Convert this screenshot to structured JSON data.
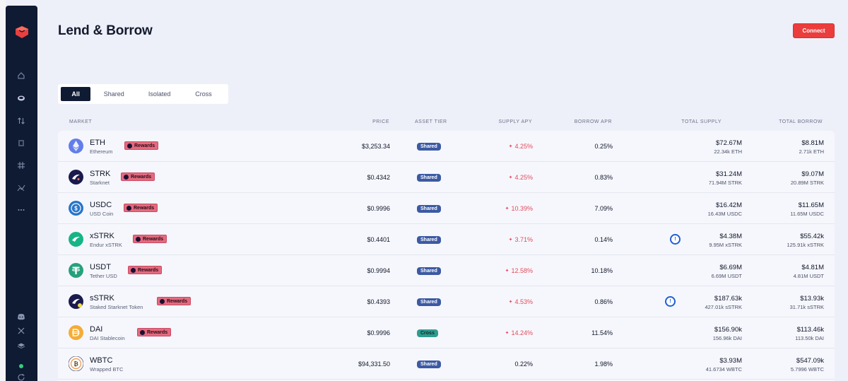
{
  "page": {
    "title": "Lend & Borrow"
  },
  "header": {
    "connect_label": "Connect"
  },
  "sidebar": {
    "icons": [
      "logo-icon",
      "home-icon",
      "lend-icon",
      "swap-icon",
      "bank-icon",
      "grid-icon",
      "chart-icon",
      "more-icon",
      "discord-icon",
      "x-icon",
      "docs-icon",
      "refresh-icon"
    ]
  },
  "tabs": [
    "All",
    "Shared",
    "Isolated",
    "Cross"
  ],
  "columns": {
    "market": "MARKET",
    "price": "PRICE",
    "asset_tier": "ASSET TIER",
    "supply_apy": "SUPPLY APY",
    "borrow_apr": "BORROW APR",
    "total_supply": "TOTAL SUPPLY",
    "total_borrow": "TOTAL BORROW"
  },
  "rewards_label": "Rewards",
  "rows": [
    {
      "symbol": "ETH",
      "name": "Ethereum",
      "price": "$3,253.34",
      "tier": "Shared",
      "supply_apy": "4.25%",
      "borrow_apr": "0.25%",
      "total_supply": "$72.67M",
      "total_supply_sub": "22.34k ETH",
      "total_borrow": "$8.81M",
      "total_borrow_sub": "2.71k ETH"
    },
    {
      "symbol": "STRK",
      "name": "Starknet",
      "price": "$0.4342",
      "tier": "Shared",
      "supply_apy": "4.25%",
      "borrow_apr": "0.83%",
      "total_supply": "$31.24M",
      "total_supply_sub": "71.94M STRK",
      "total_borrow": "$9.07M",
      "total_borrow_sub": "20.89M STRK"
    },
    {
      "symbol": "USDC",
      "name": "USD Coin",
      "price": "$0.9996",
      "tier": "Shared",
      "supply_apy": "10.39%",
      "borrow_apr": "7.09%",
      "total_supply": "$16.42M",
      "total_supply_sub": "16.43M USDC",
      "total_borrow": "$11.65M",
      "total_borrow_sub": "11.65M USDC"
    },
    {
      "symbol": "xSTRK",
      "name": "Endur xSTRK",
      "price": "$0.4401",
      "tier": "Shared",
      "supply_apy": "3.71%",
      "borrow_apr": "0.14%",
      "total_supply": "$4.38M",
      "total_supply_sub": "9.95M xSTRK",
      "total_borrow": "$55.42k",
      "total_borrow_sub": "125.91k xSTRK"
    },
    {
      "symbol": "USDT",
      "name": "Tether USD",
      "price": "$0.9994",
      "tier": "Shared",
      "supply_apy": "12.58%",
      "borrow_apr": "10.18%",
      "total_supply": "$6.69M",
      "total_supply_sub": "6.69M USDT",
      "total_borrow": "$4.81M",
      "total_borrow_sub": "4.81M USDT"
    },
    {
      "symbol": "sSTRK",
      "name": "Staked Starknet Token",
      "price": "$0.4393",
      "tier": "Shared",
      "supply_apy": "4.53%",
      "borrow_apr": "0.86%",
      "total_supply": "$187.63k",
      "total_supply_sub": "427.01k sSTRK",
      "total_borrow": "$13.93k",
      "total_borrow_sub": "31.71k sSTRK"
    },
    {
      "symbol": "DAI",
      "name": "DAI Stablecoin",
      "price": "$0.9996",
      "tier": "Cross",
      "supply_apy": "14.24%",
      "borrow_apr": "11.54%",
      "total_supply": "$156.90k",
      "total_supply_sub": "156.96k DAI",
      "total_borrow": "$113.46k",
      "total_borrow_sub": "113.50k DAI"
    },
    {
      "symbol": "WBTC",
      "name": "Wrapped BTC",
      "price": "$94,331.50",
      "tier": "Shared",
      "supply_apy": "0.22%",
      "borrow_apr": "1.98%",
      "total_supply": "$3.93M",
      "total_supply_sub": "41.6734 WBTC",
      "total_borrow": "$547.09k",
      "total_borrow_sub": "5.7996 WBTC"
    }
  ],
  "colors": {
    "accent": "#ec3d3d",
    "sidebar": "#0f1a33",
    "shared": "#3c5aa3",
    "cross": "#2f9b8f",
    "apy": "#e24b5c",
    "rewards": "#e46a7f"
  }
}
